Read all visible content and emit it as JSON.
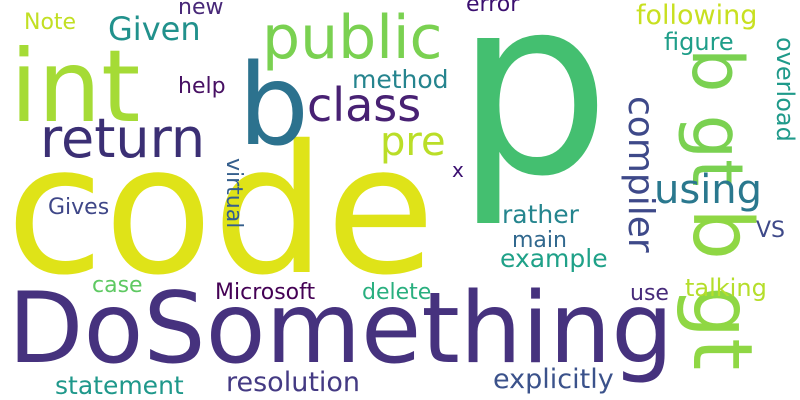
{
  "words": [
    {
      "id": "w-code",
      "text": "code",
      "color": "#dfe318"
    },
    {
      "id": "w-p",
      "text": "p",
      "color": "#44bf70"
    },
    {
      "id": "w-dosomething",
      "text": "DoSomething",
      "color": "#46327e"
    },
    {
      "id": "w-int",
      "text": "int",
      "color": "#a5db36"
    },
    {
      "id": "w-b",
      "text": "b",
      "color": "#2c728e"
    },
    {
      "id": "w-public",
      "text": "public",
      "color": "#7ad151"
    },
    {
      "id": "w-return",
      "text": "return",
      "color": "#3b2f74"
    },
    {
      "id": "w-class",
      "text": "class",
      "color": "#482173"
    },
    {
      "id": "w-pre",
      "text": "pre",
      "color": "#bade28"
    },
    {
      "id": "w-bgt-upper",
      "text": "b gt",
      "color": "#7ad151"
    },
    {
      "id": "w-bgt-lower",
      "text": "b gt",
      "color": "#8fd744"
    },
    {
      "id": "w-using",
      "text": "using",
      "color": "#2a788e"
    },
    {
      "id": "w-compiler",
      "text": "compiler",
      "color": "#3e4989"
    },
    {
      "id": "w-given",
      "text": "Given",
      "color": "#21918c"
    },
    {
      "id": "w-note",
      "text": "Note",
      "color": "#c2df23"
    },
    {
      "id": "w-new",
      "text": "new",
      "color": "#482878"
    },
    {
      "id": "w-error",
      "text": "error",
      "color": "#3b0f70"
    },
    {
      "id": "w-following",
      "text": "following",
      "color": "#c8e020"
    },
    {
      "id": "w-figure",
      "text": "figure",
      "color": "#1f9e89"
    },
    {
      "id": "w-overload",
      "text": "overload",
      "color": "#1f9a8a"
    },
    {
      "id": "w-method",
      "text": "method",
      "color": "#25848e"
    },
    {
      "id": "w-help",
      "text": "help",
      "color": "#471063"
    },
    {
      "id": "w-x",
      "text": "x",
      "color": "#3b0f70"
    },
    {
      "id": "w-gives",
      "text": "Gives",
      "color": "#3f4788"
    },
    {
      "id": "w-virtual",
      "text": "virtual",
      "color": "#355f8d"
    },
    {
      "id": "w-rather",
      "text": "rather",
      "color": "#25858e"
    },
    {
      "id": "w-main",
      "text": "main",
      "color": "#31688e"
    },
    {
      "id": "w-vs",
      "text": "VS",
      "color": "#3e4989"
    },
    {
      "id": "w-example",
      "text": "example",
      "color": "#1fa188"
    },
    {
      "id": "w-case",
      "text": "case",
      "color": "#5ec962"
    },
    {
      "id": "w-microsoft",
      "text": "Microsoft",
      "color": "#440154"
    },
    {
      "id": "w-delete",
      "text": "delete",
      "color": "#29af7f"
    },
    {
      "id": "w-use",
      "text": "use",
      "color": "#472a7a"
    },
    {
      "id": "w-talking",
      "text": "talking",
      "color": "#b5de2b"
    },
    {
      "id": "w-statement",
      "text": "statement",
      "color": "#1f988b"
    },
    {
      "id": "w-resolution",
      "text": "resolution",
      "color": "#443a83"
    },
    {
      "id": "w-explicitly",
      "text": "explicitly",
      "color": "#3b528b"
    }
  ]
}
